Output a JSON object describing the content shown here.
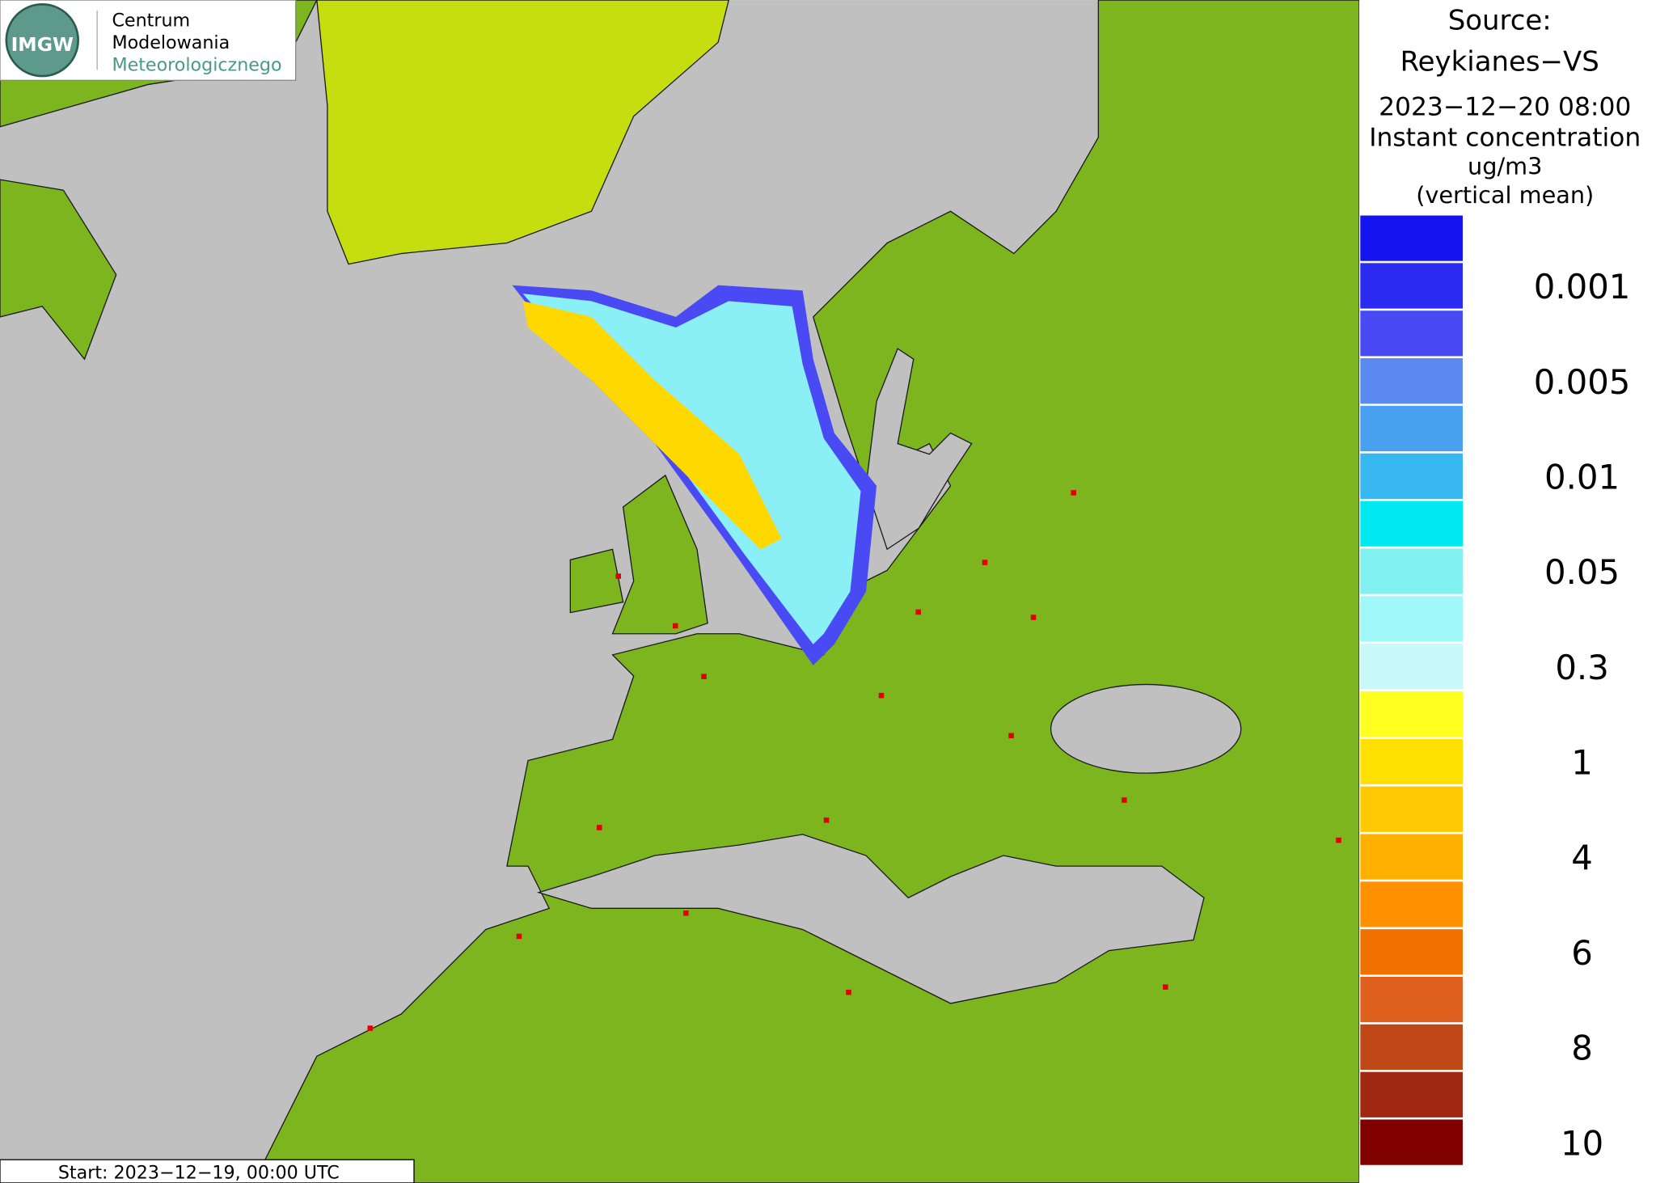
{
  "logo": {
    "abbrev": "IMGW",
    "lines": [
      "Centrum",
      "Modelowania",
      "Meteorologicznego"
    ]
  },
  "map": {
    "start": "Start: 2023−12−19, 00:00 UTC"
  },
  "legend": {
    "title": [
      "Source:",
      "Reykianes−VS",
      "2023−12−20 08:00",
      "Instant concentration",
      "ug/m3",
      "(vertical mean)"
    ],
    "colors": [
      "#1414f0",
      "#2a2af0",
      "#4a4af5",
      "#5a8af0",
      "#4aa0f0",
      "#38b8f0",
      "#00e8f0",
      "#80f0f0",
      "#a0f8f8",
      "#c8f8f8",
      "#ffff20",
      "#ffe000",
      "#ffc800",
      "#ffb000",
      "#ff9000",
      "#f07000",
      "#e06020",
      "#c04818",
      "#a02810",
      "#800000"
    ],
    "labels": [
      "0.001",
      "0.005",
      "0.01",
      "0.05",
      "0.3",
      "1",
      "4",
      "6",
      "8",
      "10"
    ]
  }
}
